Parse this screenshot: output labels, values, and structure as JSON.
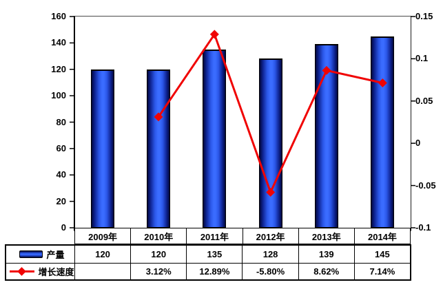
{
  "chart_data": {
    "type": "combo",
    "title": "",
    "categories": [
      "2009年",
      "2010年",
      "2011年",
      "2012年",
      "2013年",
      "2014年"
    ],
    "series": [
      {
        "name": "产量",
        "type": "bar",
        "axis": "left",
        "color_center": "#3a6cff",
        "color_edge": "#02073c",
        "values": [
          120,
          120,
          135,
          128,
          139,
          145
        ],
        "display": [
          "120",
          "120",
          "135",
          "128",
          "139",
          "145"
        ]
      },
      {
        "name": "增长速度",
        "type": "line",
        "axis": "right",
        "color": "#f00404",
        "marker": "diamond",
        "values": [
          null,
          0.0312,
          0.1289,
          -0.058,
          0.0862,
          0.0714
        ],
        "display": [
          "",
          "3.12%",
          "12.89%",
          "-5.80%",
          "8.62%",
          "7.14%"
        ]
      }
    ],
    "left_axis": {
      "min": 0,
      "max": 160,
      "tick_step": 20,
      "tick_labels": [
        "160",
        "140",
        "120",
        "100",
        "80",
        "60",
        "40",
        "20",
        "0"
      ]
    },
    "right_axis": {
      "min": -0.1,
      "max": 0.15,
      "tick_step": 0.05,
      "tick_labels": [
        "0.15",
        "0.1",
        "0.05",
        "0",
        "-0.05",
        "-0.1"
      ]
    },
    "grid": false,
    "legend_position": "table-left",
    "data_table": true
  }
}
